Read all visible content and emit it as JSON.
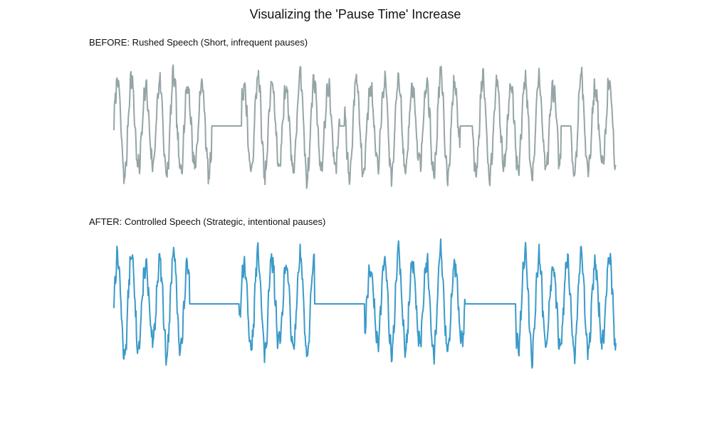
{
  "figure": {
    "title": "Visualizing the 'Pause Time' Increase"
  },
  "chart_data": [
    {
      "type": "line",
      "title": "BEFORE: Rushed Speech (Short, infrequent pauses)",
      "xlabel": "",
      "ylabel": "",
      "grid": false,
      "axes_visible": false,
      "color": "#95a5a6",
      "x_range": [
        0,
        100
      ],
      "ylim": [
        -1.25,
        1.25
      ],
      "wave_period": 2.8,
      "wave_amplitude": 1.0,
      "speech_segments": [
        [
          0,
          19.5
        ],
        [
          25.5,
          45.0
        ],
        [
          46.0,
          69.0
        ],
        [
          71.5,
          89.0
        ],
        [
          91.0,
          100
        ]
      ],
      "pauses": [
        [
          19.5,
          25.5
        ],
        [
          45.0,
          46.0
        ],
        [
          69.0,
          71.5
        ],
        [
          89.0,
          91.0
        ]
      ]
    },
    {
      "type": "line",
      "title": "AFTER: Controlled Speech (Strategic, intentional pauses)",
      "xlabel": "",
      "ylabel": "",
      "grid": false,
      "axes_visible": false,
      "color": "#3b9ac9",
      "x_range": [
        0,
        100
      ],
      "ylim": [
        -1.25,
        1.25
      ],
      "wave_period": 2.8,
      "wave_amplitude": 1.0,
      "speech_segments": [
        [
          0,
          15.0
        ],
        [
          25.0,
          40.0
        ],
        [
          50.0,
          70.0
        ],
        [
          80.0,
          100
        ]
      ],
      "pauses": [
        [
          15.0,
          25.0
        ],
        [
          40.0,
          50.0
        ],
        [
          70.0,
          80.0
        ]
      ]
    }
  ]
}
